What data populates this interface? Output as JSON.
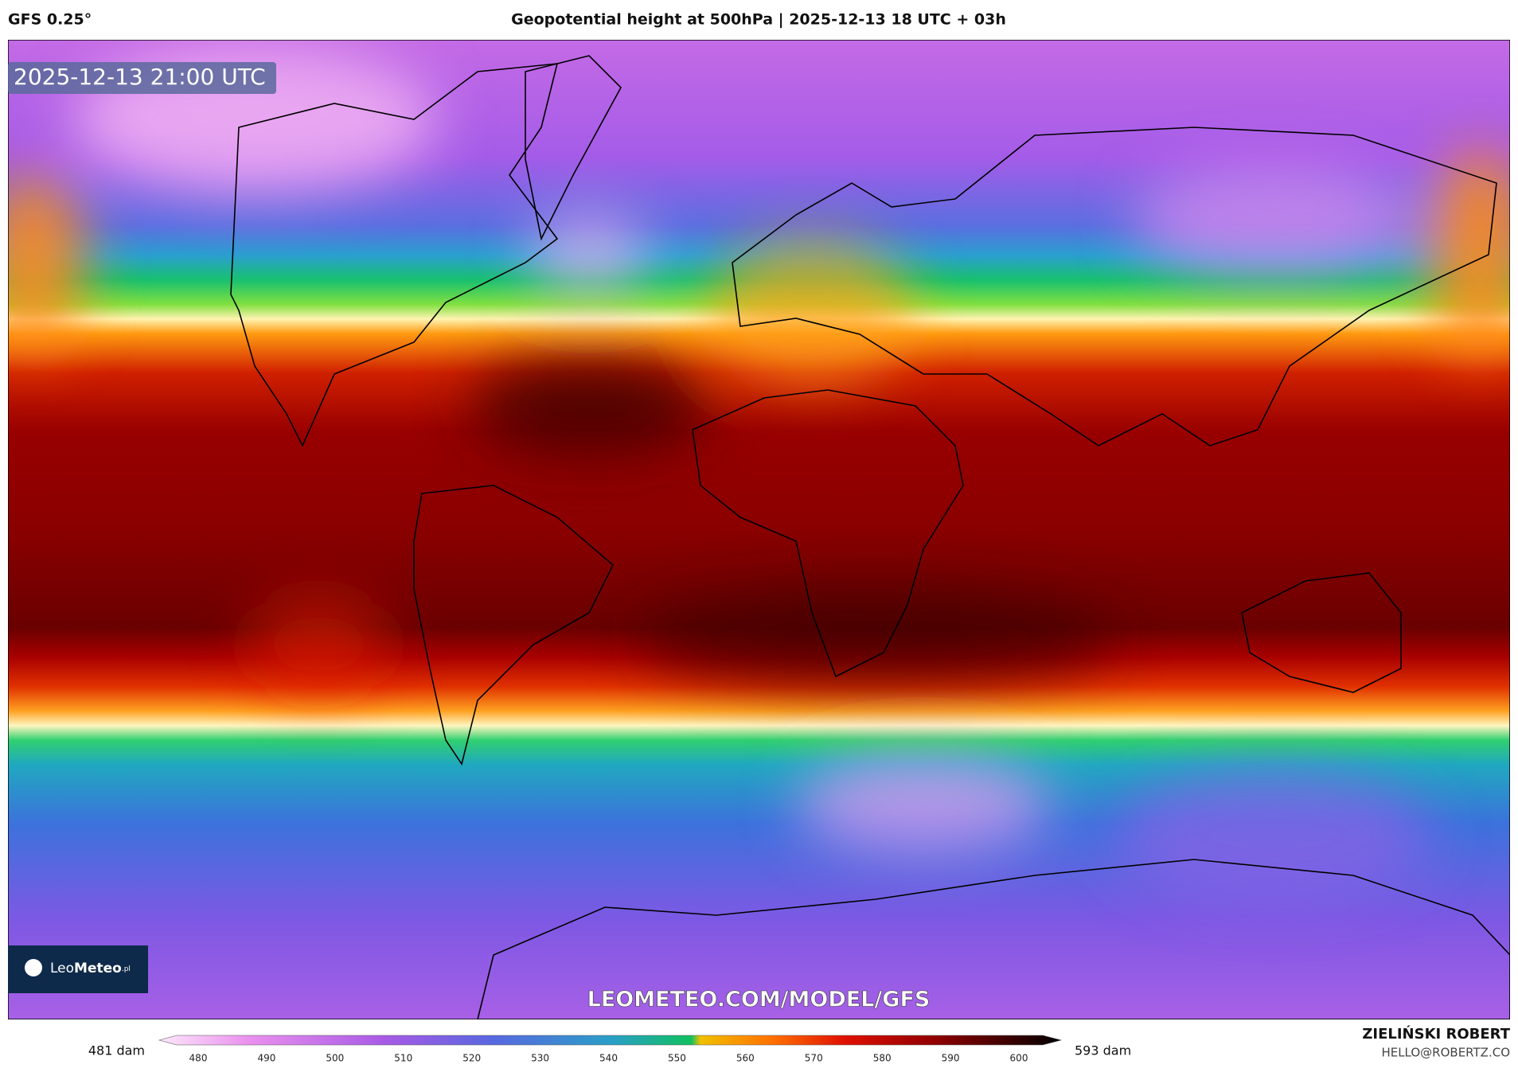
{
  "header": {
    "model": "GFS 0.25°",
    "title": "Geopotential height at 500hPa | 2025-12-13 18 UTC + 03h"
  },
  "map": {
    "timestamp": "2025-12-13 21:00 UTC",
    "watermark": "LEOMETEO.COM/MODEL/GFS",
    "logo": {
      "name": "Leo",
      "name_bold": "Meteo",
      "suffix": ".pl"
    }
  },
  "colorbar": {
    "min_label": "481 dam",
    "max_label": "593 dam",
    "ticks": [
      480,
      490,
      500,
      510,
      520,
      530,
      540,
      550,
      560,
      570,
      580,
      590,
      600
    ]
  },
  "footer": {
    "author": "ZIELIŃSKI ROBERT",
    "email": "HELLO@ROBERTZ.CO"
  }
}
